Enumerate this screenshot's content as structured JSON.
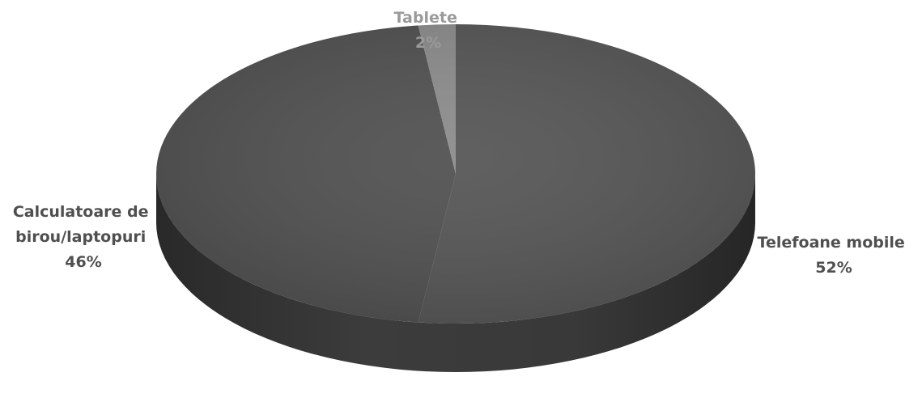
{
  "chart_data": {
    "type": "pie",
    "title": "",
    "three_d": true,
    "slices": [
      {
        "label_lines": [
          "Telefoane mobile"
        ],
        "value": 52,
        "value_text": "52%",
        "color": "#565656",
        "side_color": "#3f3f3f",
        "label_color": "#4f4f4f"
      },
      {
        "label_lines": [
          "Calculatoare de",
          "birou/laptopuri"
        ],
        "value": 46,
        "value_text": "46%",
        "color": "#515151",
        "side_color": "#3c3c3c",
        "label_color": "#4f4f4f"
      },
      {
        "label_lines": [
          "Tablete"
        ],
        "value": 2,
        "value_text": "2%",
        "color": "#8c8c8c",
        "side_color": "#6e6e6e",
        "label_color": "#9a9a9a"
      }
    ]
  }
}
